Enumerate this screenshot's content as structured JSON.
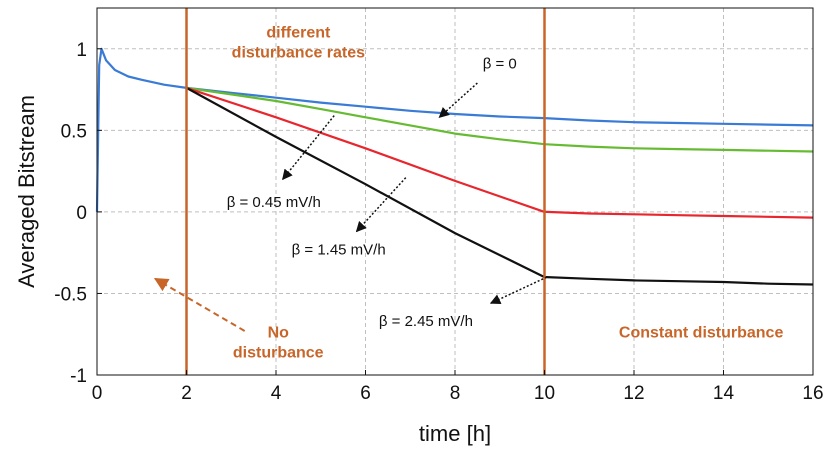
{
  "chart_data": {
    "type": "line",
    "title": "",
    "xlabel": "time [h]",
    "ylabel": "Averaged Bitstream",
    "xlim": [
      0,
      16
    ],
    "ylim": [
      -1,
      1.25
    ],
    "x_ticks": [
      0,
      2,
      4,
      6,
      8,
      10,
      12,
      14,
      16
    ],
    "y_ticks": [
      -1,
      -0.5,
      0,
      0.5,
      1
    ],
    "x_tick_labels": [
      "0",
      "2",
      "4",
      "6",
      "8",
      "10",
      "12",
      "14",
      "16"
    ],
    "y_tick_labels": [
      "-1",
      "-0.5",
      "0",
      "0.5",
      "1"
    ],
    "grid": true,
    "series": [
      {
        "color": "#3a7bd5",
        "x": [
          0,
          0.05,
          0.1,
          0.2,
          0.4,
          0.7,
          1.0,
          1.5,
          2.0,
          3,
          4,
          5,
          6,
          7,
          8,
          9,
          10,
          11,
          12,
          13,
          14,
          15,
          16
        ],
        "y": [
          0,
          0.9,
          1.0,
          0.93,
          0.87,
          0.83,
          0.81,
          0.78,
          0.76,
          0.73,
          0.7,
          0.67,
          0.645,
          0.62,
          0.6,
          0.585,
          0.575,
          0.56,
          0.55,
          0.545,
          0.54,
          0.535,
          0.53
        ]
      },
      {
        "color": "#66bb33",
        "x": [
          2,
          3,
          4,
          5,
          6,
          7,
          8,
          9,
          10,
          11,
          12,
          13,
          14,
          15,
          16
        ],
        "y": [
          0.76,
          0.72,
          0.68,
          0.63,
          0.58,
          0.53,
          0.48,
          0.445,
          0.415,
          0.4,
          0.39,
          0.385,
          0.38,
          0.375,
          0.37
        ]
      },
      {
        "color": "#e8262d",
        "x": [
          2,
          4,
          6,
          8,
          10,
          10.05,
          11,
          12,
          13,
          14,
          15,
          16
        ],
        "y": [
          0.76,
          0.58,
          0.39,
          0.19,
          0.0,
          0.0,
          -0.01,
          -0.015,
          -0.02,
          -0.025,
          -0.03,
          -0.035
        ]
      },
      {
        "color": "#111111",
        "x": [
          2,
          4,
          6,
          8,
          10,
          10.05,
          11,
          12,
          13,
          14,
          15,
          16
        ],
        "y": [
          0.76,
          0.46,
          0.17,
          -0.13,
          -0.4,
          -0.4,
          -0.41,
          -0.42,
          -0.425,
          -0.43,
          -0.44,
          -0.445
        ]
      }
    ],
    "vertical_lines": [
      {
        "x": 2,
        "color": "#c8662a"
      },
      {
        "x": 10,
        "color": "#c8662a"
      }
    ],
    "annotations": [
      {
        "id": "different",
        "lines": [
          "different",
          "disturbance rates"
        ],
        "style": "orange",
        "at": [
          4.5,
          1.07
        ]
      },
      {
        "id": "none",
        "lines": [
          "No",
          "disturbance"
        ],
        "style": "orange",
        "at": [
          4.05,
          -0.77
        ]
      },
      {
        "id": "constant",
        "lines": [
          "Constant disturbance"
        ],
        "style": "orange",
        "at": [
          13.5,
          -0.77
        ]
      },
      {
        "id": "beta0",
        "lines": [
          "β = 0"
        ],
        "style": "beta",
        "at": [
          9.0,
          0.88
        ]
      },
      {
        "id": "beta045",
        "lines": [
          "β = 0.45 mV/h"
        ],
        "style": "beta",
        "at": [
          3.95,
          0.03
        ]
      },
      {
        "id": "beta145",
        "lines": [
          "β = 1.45 mV/h"
        ],
        "style": "beta",
        "at": [
          5.4,
          -0.26
        ]
      },
      {
        "id": "beta245",
        "lines": [
          "β = 2.45 mV/h"
        ],
        "style": "beta",
        "at": [
          7.35,
          -0.7
        ]
      }
    ],
    "arrows": [
      {
        "from": [
          8.5,
          0.79
        ],
        "to": [
          7.65,
          0.58
        ],
        "style": "dotted"
      },
      {
        "from": [
          5.3,
          0.59
        ],
        "to": [
          4.15,
          0.2
        ],
        "style": "dotted"
      },
      {
        "from": [
          6.9,
          0.21
        ],
        "to": [
          5.8,
          -0.12
        ],
        "style": "dotted"
      },
      {
        "from": [
          10.05,
          -0.4
        ],
        "to": [
          8.8,
          -0.56
        ],
        "style": "dotted"
      },
      {
        "from": [
          3.3,
          -0.73
        ],
        "to": [
          1.3,
          -0.41
        ],
        "style": "dashed"
      }
    ],
    "colors": {
      "axis": "#111111",
      "grid": "#bfbfbf",
      "annotation_orange": "#c8662a",
      "beta_arrow": "#111111"
    }
  }
}
